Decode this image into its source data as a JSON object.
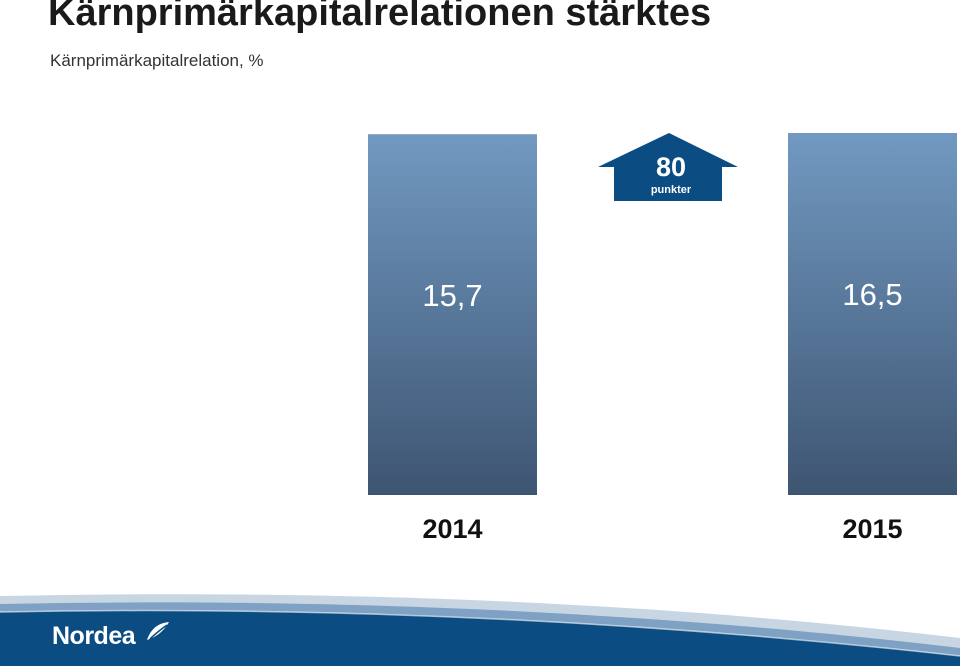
{
  "title": "Kärnprimärkapitalrelationen stärktes",
  "subtitle": "Kärnprimärkapitalrelation, %",
  "chart_data": {
    "type": "bar",
    "categories": [
      "2014",
      "2015"
    ],
    "values": [
      15.7,
      16.5
    ],
    "value_labels": [
      "15,7",
      "16,5"
    ],
    "annotation": {
      "value": "80",
      "unit": "punkter"
    },
    "bar_color_top": "#7199c1",
    "bar_color_bottom": "#3e5572",
    "annotation_color": "#0b4d82",
    "grid": false
  },
  "logo": {
    "name": "Nordea",
    "brand_color": "#0b4d82"
  }
}
